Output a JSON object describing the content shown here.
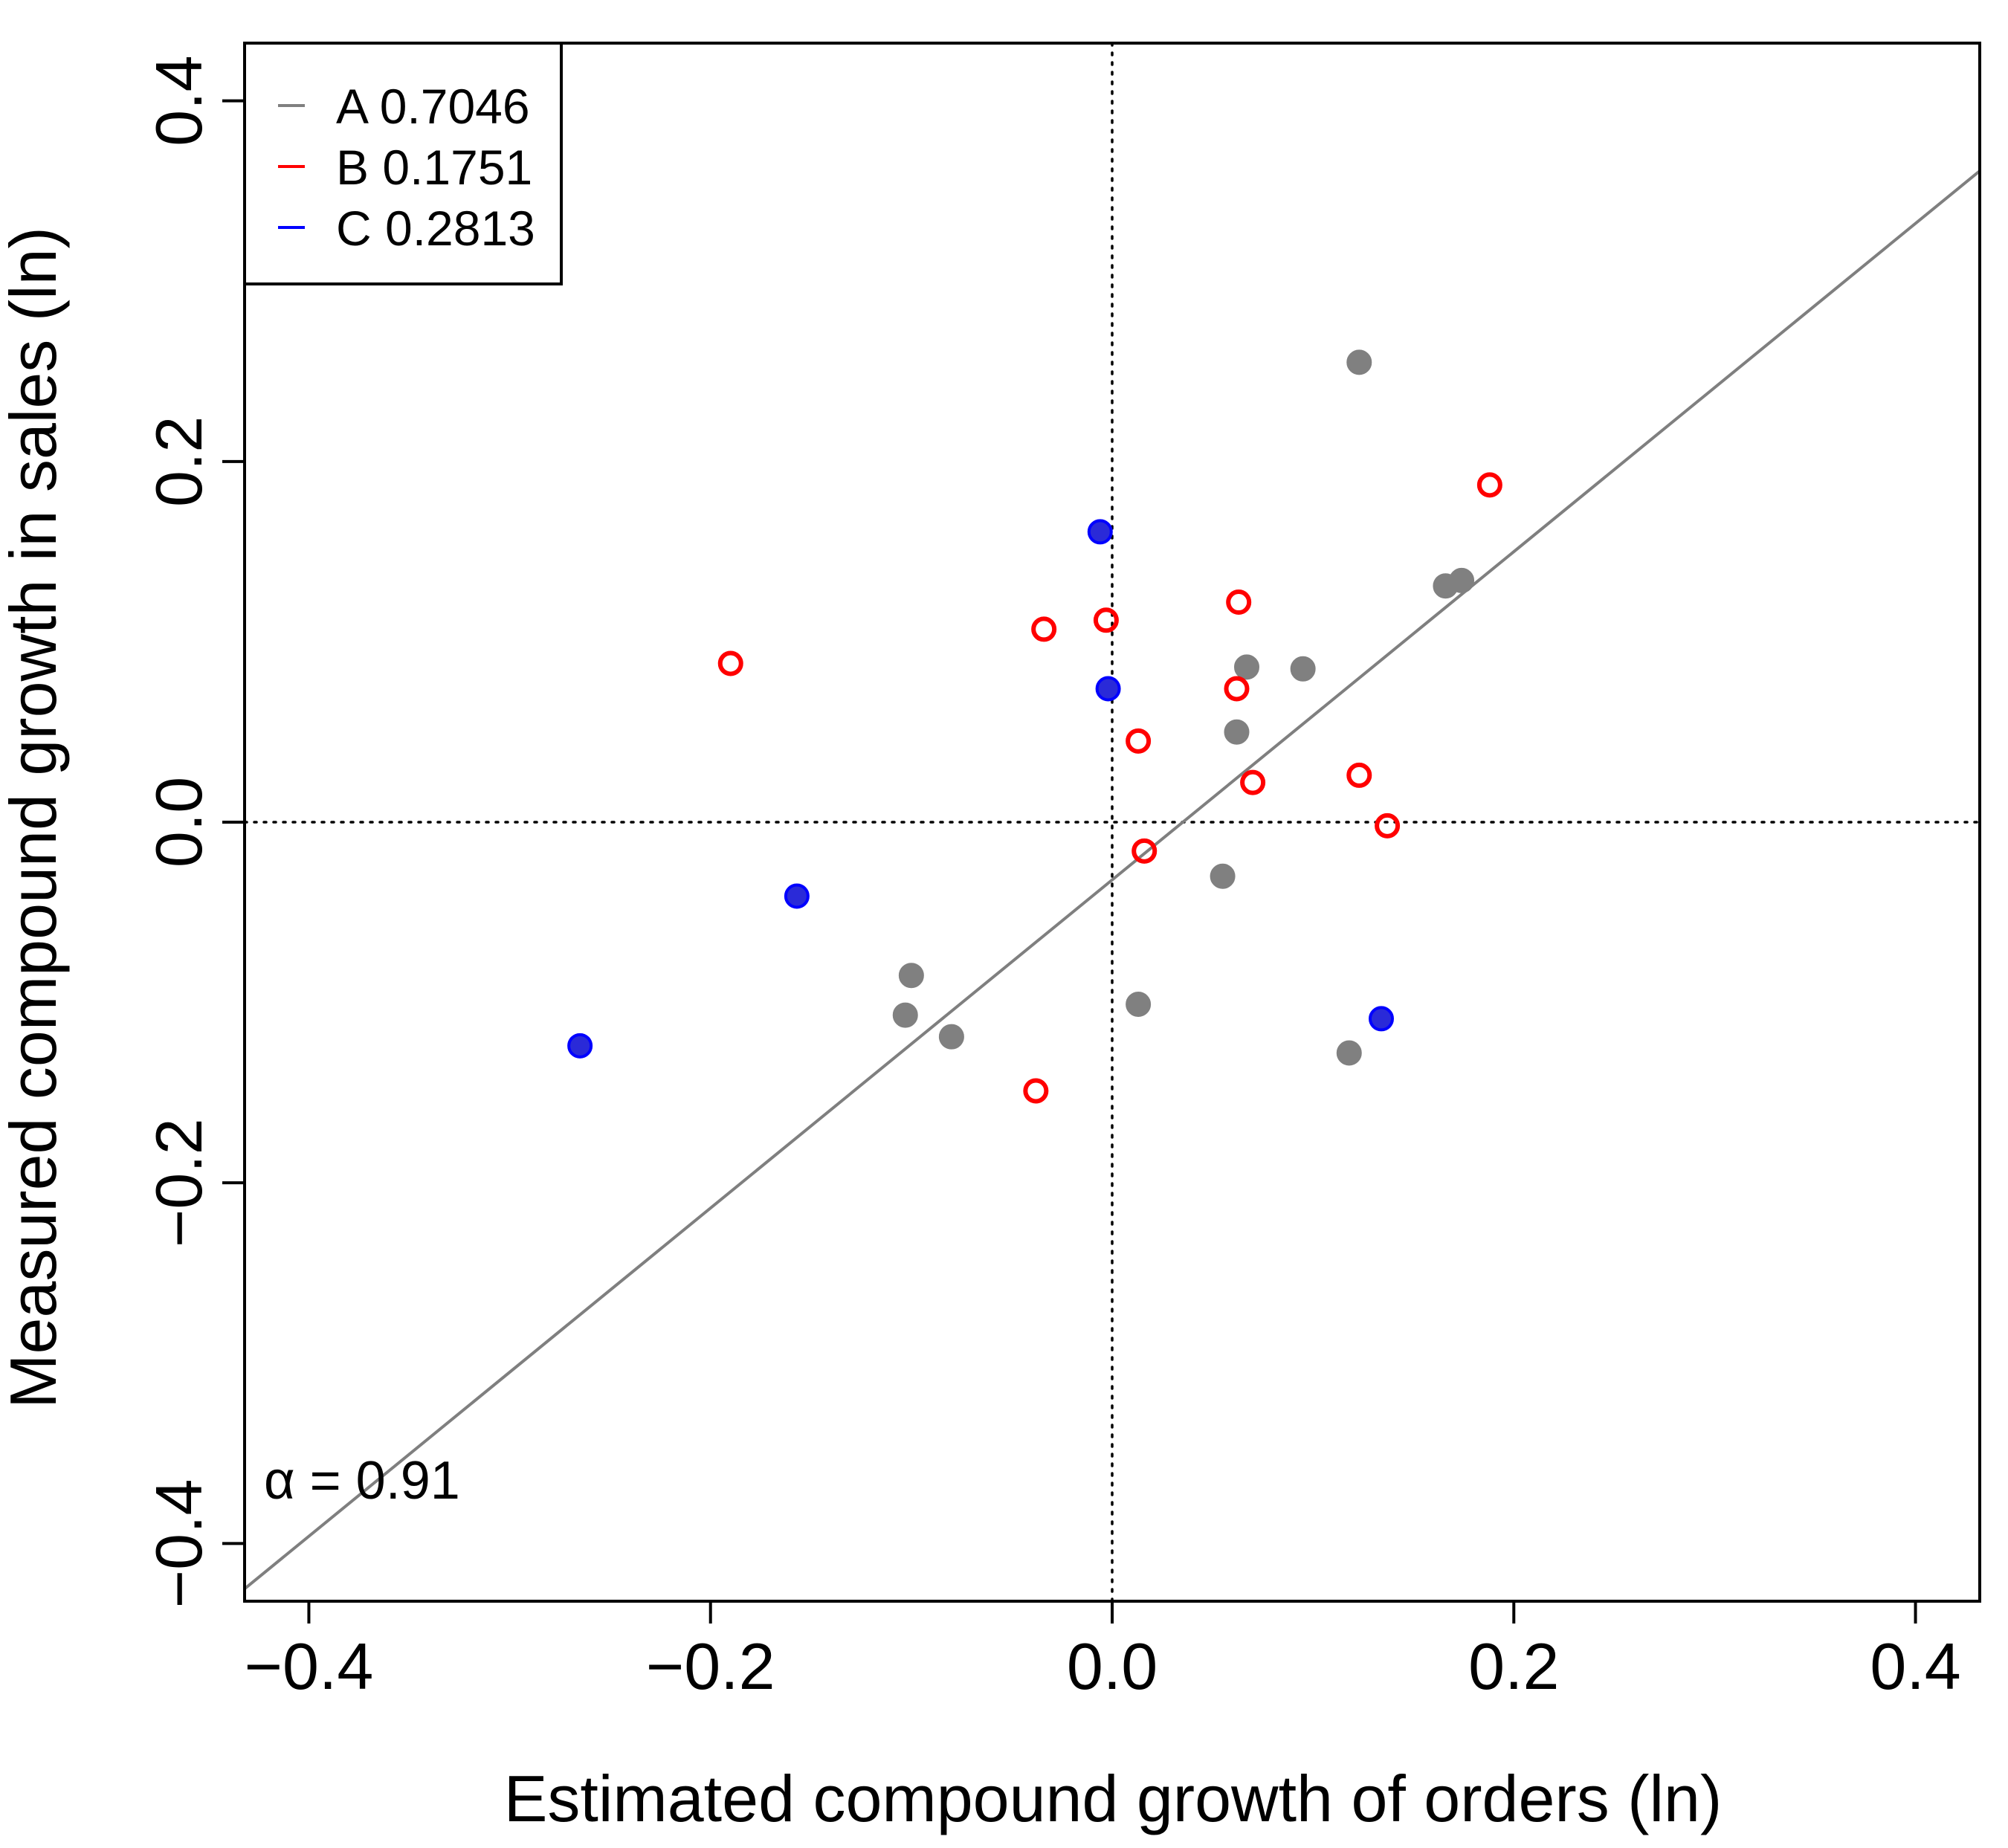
{
  "chart_data": {
    "type": "scatter",
    "title": "",
    "xlabel": "Estimated compound growth of orders (ln)",
    "ylabel": "Measured compound growth in sales (ln)",
    "xlim": [
      -0.432,
      0.432
    ],
    "ylim": [
      -0.432,
      0.432
    ],
    "x_ticks": [
      -0.4,
      -0.2,
      0.0,
      0.2,
      0.4
    ],
    "x_tick_labels": [
      "−0.4",
      "−0.2",
      "0.0",
      "0.2",
      "0.4"
    ],
    "y_ticks": [
      -0.4,
      -0.2,
      0.0,
      0.2,
      0.4
    ],
    "y_tick_labels": [
      "−0.4",
      "−0.2",
      "0.0",
      "0.2",
      "0.4"
    ],
    "grid": false,
    "reference_lines": {
      "x": 0,
      "y": 0,
      "style": "dotted"
    },
    "fit_line": {
      "intercept": -0.032,
      "slope": 0.91,
      "color": "#7f7f7f"
    },
    "annotation": "α = 0.91",
    "legend": {
      "position": "top-left",
      "entries": [
        {
          "label": "A 0.7046",
          "color": "#808080"
        },
        {
          "label": "B 0.1751",
          "color": "#ff0000"
        },
        {
          "label": "C 0.2813",
          "color": "#0000ff"
        }
      ]
    },
    "series": [
      {
        "name": "A 0.7046",
        "color": "#808080",
        "marker": "filled-circle",
        "points": [
          [
            0.123,
            0.255
          ],
          [
            0.166,
            0.131
          ],
          [
            0.174,
            0.134
          ],
          [
            0.067,
            0.086
          ],
          [
            0.095,
            0.085
          ],
          [
            0.062,
            0.05
          ],
          [
            0.055,
            -0.03
          ],
          [
            0.013,
            -0.101
          ],
          [
            -0.1,
            -0.085
          ],
          [
            -0.103,
            -0.107
          ],
          [
            -0.08,
            -0.119
          ],
          [
            0.118,
            -0.128
          ]
        ]
      },
      {
        "name": "B 0.1751",
        "color": "#ff0000",
        "marker": "open-circle",
        "points": [
          [
            0.188,
            0.187
          ],
          [
            0.063,
            0.122
          ],
          [
            -0.003,
            0.112
          ],
          [
            -0.034,
            0.107
          ],
          [
            -0.19,
            0.088
          ],
          [
            0.062,
            0.074
          ],
          [
            0.013,
            0.045
          ],
          [
            0.07,
            0.022
          ],
          [
            0.123,
            0.026
          ],
          [
            0.137,
            -0.002
          ],
          [
            0.016,
            -0.016
          ],
          [
            -0.038,
            -0.149
          ]
        ]
      },
      {
        "name": "C 0.2813",
        "color": "#0000ff",
        "marker": "filled-circle",
        "points": [
          [
            -0.006,
            0.161
          ],
          [
            -0.002,
            0.074
          ],
          [
            -0.157,
            -0.041
          ],
          [
            -0.265,
            -0.124
          ],
          [
            0.134,
            -0.109
          ]
        ]
      }
    ]
  }
}
